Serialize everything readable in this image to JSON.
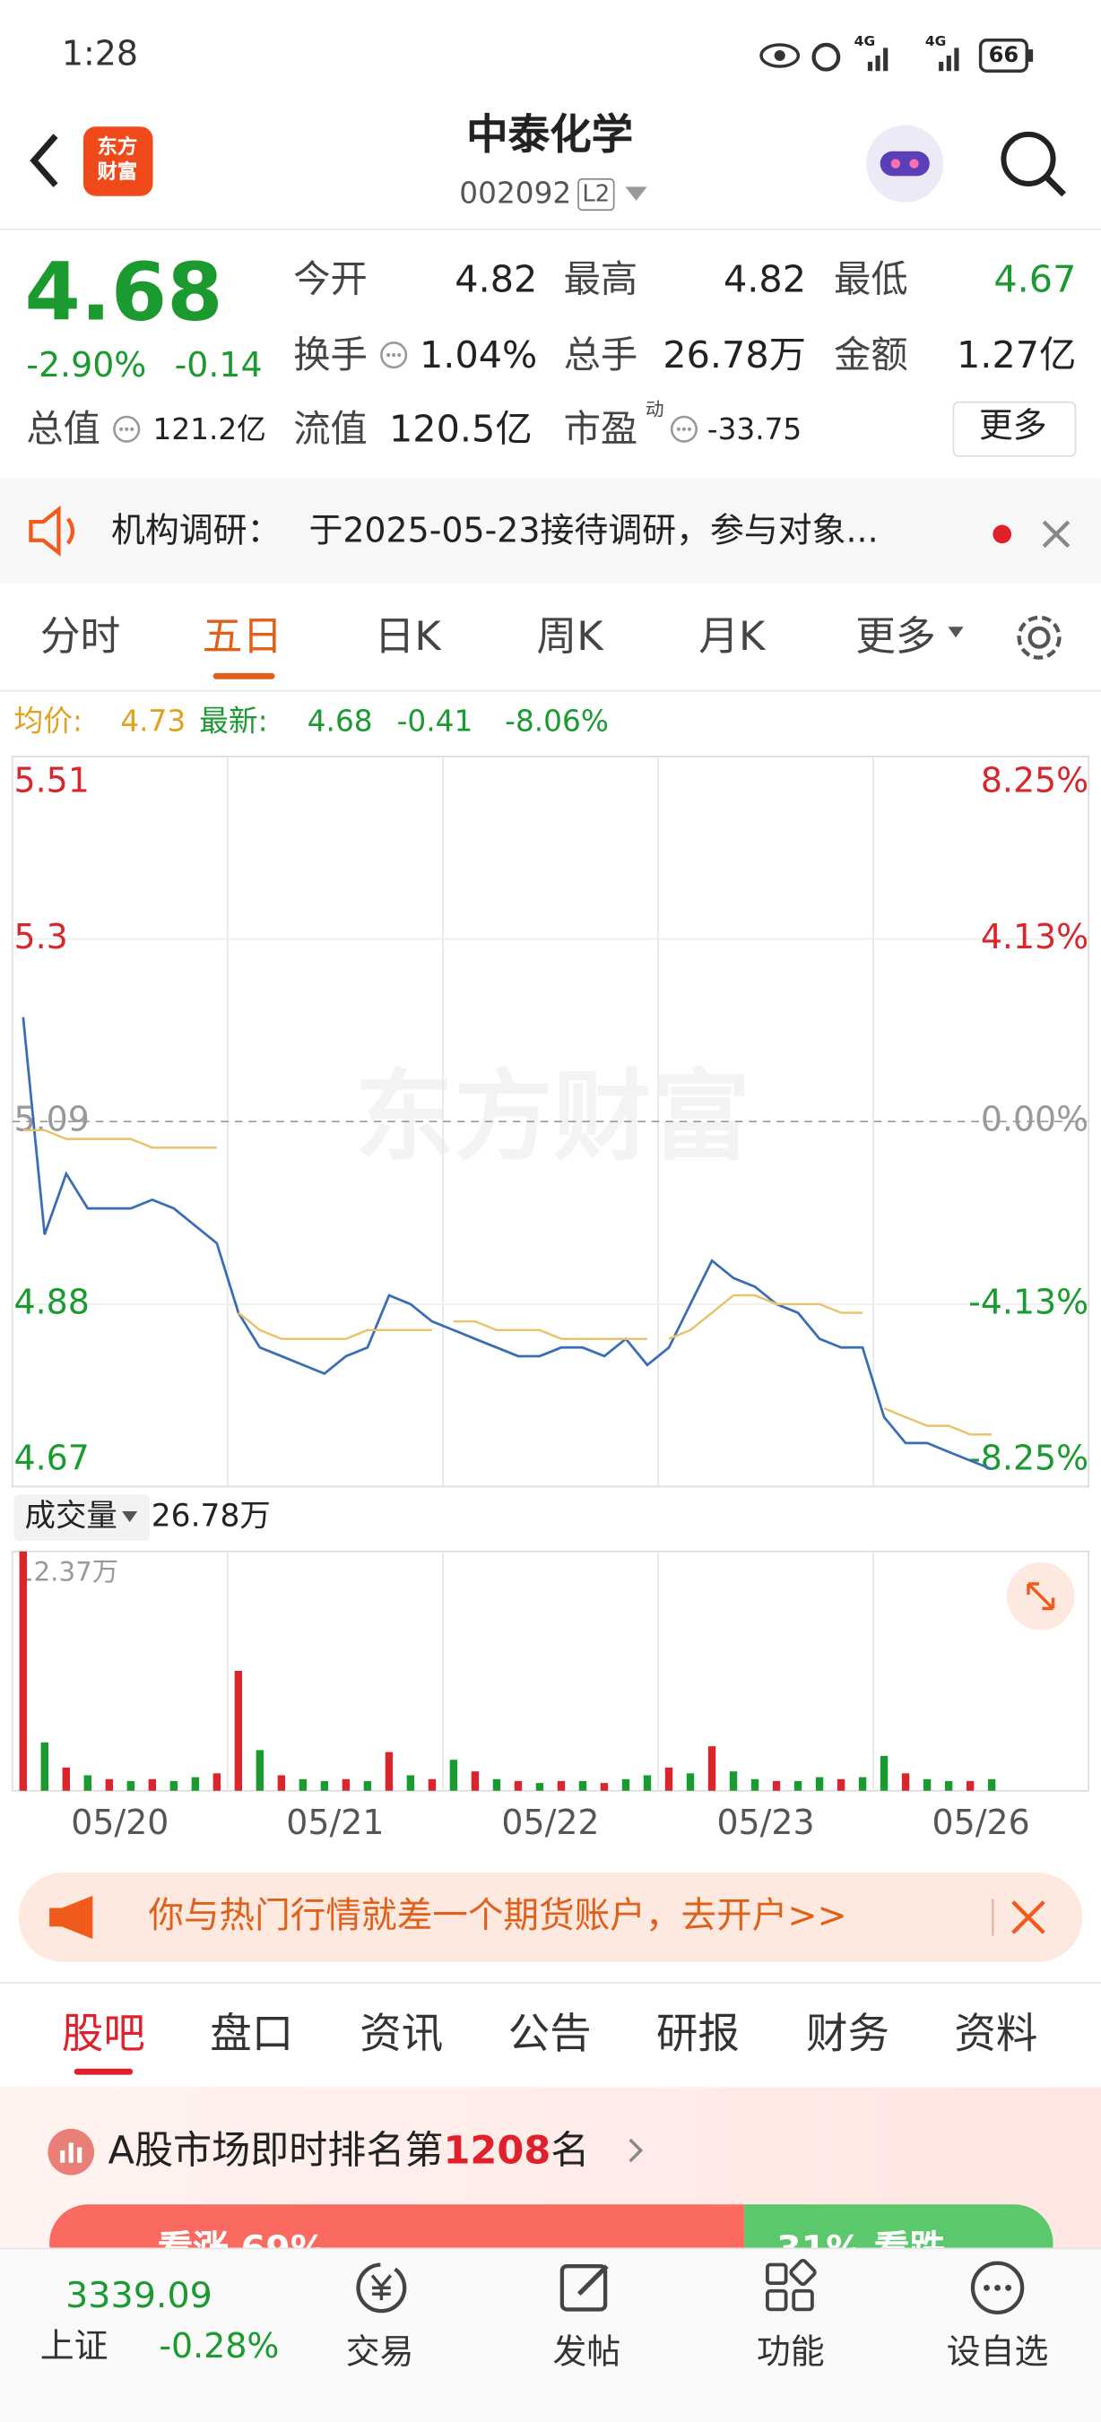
{
  "status_bar": {
    "time": "1:28",
    "network": [
      "4G",
      "4G"
    ],
    "battery": "66"
  },
  "header": {
    "logo": "东方财富",
    "title": "中泰化学",
    "code": "002092",
    "level": "L2"
  },
  "quote": {
    "price": "4.68",
    "change_pct": "-2.90%",
    "change": "-0.14",
    "fields": [
      {
        "label": "今开",
        "value": "4.82"
      },
      {
        "label": "最高",
        "value": "4.82"
      },
      {
        "label": "最低",
        "value": "4.67"
      },
      {
        "label": "换手",
        "value": "1.04%"
      },
      {
        "label": "总手",
        "value": "26.78万"
      },
      {
        "label": "金额",
        "value": "1.27亿"
      },
      {
        "label": "总值",
        "value": "121.2亿"
      },
      {
        "label": "流值",
        "value": "120.5亿"
      },
      {
        "label": "市盈",
        "sup": "动",
        "value": "-33.75"
      }
    ],
    "more": "更多"
  },
  "notice": {
    "label": "机构调研：",
    "text": "于2025-05-23接待调研，参与对象..."
  },
  "tabs": [
    "分时",
    "五日",
    "日K",
    "周K",
    "月K",
    "更多"
  ],
  "summary": {
    "avg_label": "均价:",
    "avg": "4.73",
    "latest_label": "最新:",
    "latest": "4.68",
    "change": "-0.41",
    "change_pct": "-8.06%"
  },
  "watermark": "东方财富",
  "chart_data": [
    {
      "type": "line",
      "categories": [
        "05/20",
        "05/21",
        "05/22",
        "05/23",
        "05/26"
      ],
      "ylim": [
        4.67,
        5.51
      ],
      "yticks": [
        5.51,
        5.3,
        5.09,
        4.88,
        4.67
      ],
      "y2lim": [
        -8.25,
        8.25
      ],
      "y2ticks": [
        {
          "value": 8.25,
          "label": "8.25%"
        },
        {
          "value": 4.13,
          "label": "4.13%"
        },
        {
          "value": 0,
          "label": "0.00%"
        },
        {
          "value": -4.13,
          "label": "-4.13%"
        },
        {
          "value": -8.25,
          "label": "-8.25%"
        }
      ],
      "series": [
        {
          "color": "#3a6db5",
          "values": [
            [
              5.21,
              4.96,
              5.03,
              4.99,
              4.99,
              4.99,
              5.0,
              4.99,
              4.97,
              4.95
            ],
            [
              4.87,
              4.83,
              4.82,
              4.81,
              4.8,
              4.82,
              4.83,
              4.89,
              4.88,
              4.86
            ],
            [
              4.85,
              4.84,
              4.83,
              4.82,
              4.82,
              4.83,
              4.83,
              4.82,
              4.84,
              4.81
            ],
            [
              4.83,
              4.88,
              4.93,
              4.91,
              4.9,
              4.88,
              4.87,
              4.84,
              4.83,
              4.83
            ],
            [
              4.75,
              4.72,
              4.72,
              4.71,
              4.7,
              4.69
            ]
          ]
        },
        {
          "color": "#e8c268",
          "values": [
            [
              5.08,
              5.08,
              5.07,
              5.07,
              5.07,
              5.07,
              5.06,
              5.06,
              5.06,
              5.06
            ],
            [
              4.87,
              4.85,
              4.84,
              4.84,
              4.84,
              4.84,
              4.85,
              4.85,
              4.85,
              4.85
            ],
            [
              4.86,
              4.86,
              4.85,
              4.85,
              4.85,
              4.84,
              4.84,
              4.84,
              4.84,
              4.84
            ],
            [
              4.84,
              4.85,
              4.87,
              4.89,
              4.89,
              4.88,
              4.88,
              4.88,
              4.87,
              4.87
            ],
            [
              4.76,
              4.75,
              4.74,
              4.74,
              4.73,
              4.73
            ]
          ]
        }
      ]
    },
    {
      "type": "bar",
      "title": "成交量",
      "subtitle": "26.78万",
      "ylim": [
        0,
        12.37
      ],
      "yticks": [
        {
          "value": 12.37,
          "label": "12.37万"
        }
      ],
      "values": [
        [
          12.37,
          2.5,
          1.2,
          0.8,
          0.6,
          0.5,
          0.6,
          0.5,
          0.7,
          0.9
        ],
        [
          6.2,
          2.1,
          0.8,
          0.6,
          0.5,
          0.6,
          0.5,
          2.0,
          0.8,
          0.6
        ],
        [
          1.6,
          1.0,
          0.6,
          0.5,
          0.4,
          0.5,
          0.5,
          0.4,
          0.6,
          0.8
        ],
        [
          1.2,
          0.9,
          2.3,
          1.0,
          0.6,
          0.5,
          0.5,
          0.7,
          0.6,
          0.7
        ],
        [
          1.8,
          0.9,
          0.6,
          0.5,
          0.5,
          0.6
        ]
      ],
      "colors": [
        [
          "#d9262c",
          "#1b9a30",
          "#d9262c",
          "#1b9a30",
          "#d9262c",
          "#1b9a30",
          "#d9262c",
          "#1b9a30",
          "#1b9a30",
          "#d9262c"
        ],
        [
          "#d9262c",
          "#1b9a30",
          "#d9262c",
          "#1b9a30",
          "#1b9a30",
          "#d9262c",
          "#1b9a30",
          "#d9262c",
          "#1b9a30",
          "#d9262c"
        ],
        [
          "#1b9a30",
          "#d9262c",
          "#1b9a30",
          "#d9262c",
          "#1b9a30",
          "#d9262c",
          "#1b9a30",
          "#d9262c",
          "#1b9a30",
          "#1b9a30"
        ],
        [
          "#d9262c",
          "#1b9a30",
          "#d9262c",
          "#1b9a30",
          "#1b9a30",
          "#d9262c",
          "#1b9a30",
          "#1b9a30",
          "#d9262c",
          "#1b9a30"
        ],
        [
          "#1b9a30",
          "#d9262c",
          "#1b9a30",
          "#1b9a30",
          "#d9262c",
          "#1b9a30"
        ]
      ]
    }
  ],
  "banner": {
    "text": "你与热门行情就差一个期货账户，去开户>>"
  },
  "bottom_tabs": [
    "股吧",
    "盘口",
    "资讯",
    "公告",
    "研报",
    "财务",
    "资料"
  ],
  "ranking": {
    "prefix": "A股市场即时排名第",
    "rank": "1208",
    "suffix": "名",
    "bull": "看涨 69%",
    "bear": "31% 看跌"
  },
  "nav": {
    "index_value": "3339.09",
    "index_name": "上证",
    "index_change": "-0.28%",
    "items": [
      "交易",
      "发帖",
      "功能",
      "设自选"
    ]
  }
}
